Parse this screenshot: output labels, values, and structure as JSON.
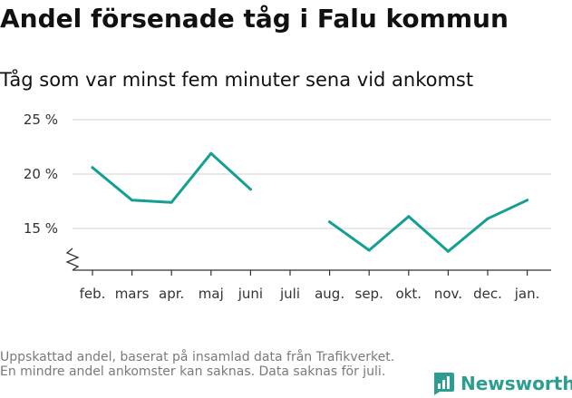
{
  "title": "Andel försenade tåg i Falu kommun",
  "subtitle": "Tåg som var minst fem minuter sena vid ankomst",
  "footnote": "Uppskattad andel, baserat på insamlad data från Trafikverket. En mindre andel ankomster kan saknas. Data saknas för juli.",
  "brand": {
    "name": "Newsworthy",
    "color": "#2b9e8f"
  },
  "chart_data": {
    "type": "line",
    "title": "Andel försenade tåg i Falu kommun",
    "subtitle": "Tåg som var minst fem minuter sena vid ankomst",
    "xlabel": "",
    "ylabel": "",
    "categories": [
      "feb.",
      "mars",
      "apr.",
      "maj",
      "juni",
      "juli",
      "aug.",
      "sep.",
      "okt.",
      "nov.",
      "dec.",
      "jan."
    ],
    "y_ticks": [
      15,
      20,
      25
    ],
    "y_tick_labels": [
      "15 %",
      "20 %",
      "25 %"
    ],
    "ylim": [
      12,
      25
    ],
    "y_axis_break": true,
    "grid": true,
    "series": [
      {
        "name": "Andel försenade tåg",
        "color": "#13a093",
        "values": [
          20.6,
          17.6,
          17.4,
          21.9,
          18.6,
          null,
          15.6,
          13.0,
          16.1,
          12.9,
          15.9,
          17.6
        ]
      }
    ]
  }
}
